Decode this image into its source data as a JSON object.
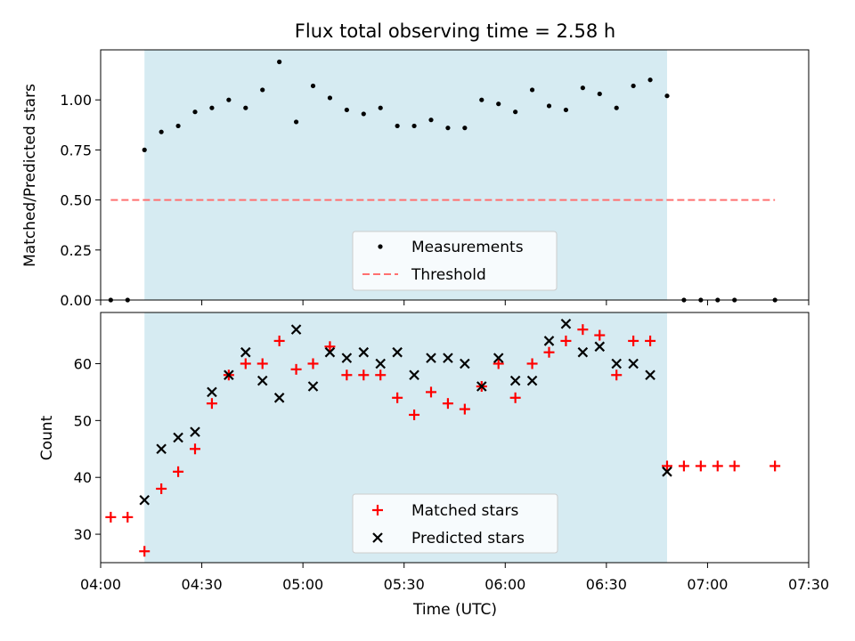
{
  "chart_data": [
    {
      "type": "scatter",
      "title": "Flux total observing time = 2.58 h",
      "ylabel": "Matched/Predicted stars",
      "xlabel": "",
      "xlim": [
        "04:00",
        "07:30"
      ],
      "ylim": [
        0,
        1.25
      ],
      "yticks": [
        "0.00",
        "0.25",
        "0.50",
        "0.75",
        "1.00"
      ],
      "shaded_interval": [
        "04:13",
        "06:48"
      ],
      "shade_color": "#add8e6",
      "legend_position": "lower center",
      "series": [
        {
          "name": "Measurements",
          "marker": "dot",
          "color": "#000000",
          "points": [
            [
              "04:03",
              0.0
            ],
            [
              "04:08",
              0.0
            ],
            [
              "04:13",
              0.75
            ],
            [
              "04:18",
              0.84
            ],
            [
              "04:23",
              0.87
            ],
            [
              "04:28",
              0.94
            ],
            [
              "04:33",
              0.96
            ],
            [
              "04:38",
              1.0
            ],
            [
              "04:43",
              0.96
            ],
            [
              "04:48",
              1.05
            ],
            [
              "04:53",
              1.19
            ],
            [
              "04:58",
              0.89
            ],
            [
              "05:03",
              1.07
            ],
            [
              "05:08",
              1.01
            ],
            [
              "05:13",
              0.95
            ],
            [
              "05:18",
              0.93
            ],
            [
              "05:23",
              0.96
            ],
            [
              "05:28",
              0.87
            ],
            [
              "05:33",
              0.87
            ],
            [
              "05:38",
              0.9
            ],
            [
              "05:43",
              0.86
            ],
            [
              "05:48",
              0.86
            ],
            [
              "05:53",
              1.0
            ],
            [
              "05:58",
              0.98
            ],
            [
              "06:03",
              0.94
            ],
            [
              "06:08",
              1.05
            ],
            [
              "06:13",
              0.97
            ],
            [
              "06:18",
              0.95
            ],
            [
              "06:23",
              1.06
            ],
            [
              "06:28",
              1.03
            ],
            [
              "06:33",
              0.96
            ],
            [
              "06:38",
              1.07
            ],
            [
              "06:43",
              1.1
            ],
            [
              "06:48",
              1.02
            ],
            [
              "06:53",
              0.0
            ],
            [
              "06:58",
              0.0
            ],
            [
              "07:03",
              0.0
            ],
            [
              "07:08",
              0.0
            ],
            [
              "07:20",
              0.0
            ]
          ]
        },
        {
          "name": "Threshold",
          "marker": "dashed-line",
          "color": "#ff7070",
          "points": [
            [
              "04:03",
              0.5
            ],
            [
              "07:20",
              0.5
            ]
          ]
        }
      ]
    },
    {
      "type": "scatter",
      "title": "",
      "ylabel": "Count",
      "xlabel": "Time (UTC)",
      "xlim": [
        "04:00",
        "07:30"
      ],
      "ylim": [
        25,
        69
      ],
      "yticks": [
        "30",
        "40",
        "50",
        "60"
      ],
      "xticks": [
        "04:00",
        "04:30",
        "05:00",
        "05:30",
        "06:00",
        "06:30",
        "07:00",
        "07:30"
      ],
      "shaded_interval": [
        "04:13",
        "06:48"
      ],
      "shade_color": "#add8e6",
      "legend_position": "lower center",
      "series": [
        {
          "name": "Matched stars",
          "marker": "plus",
          "color": "#ff0000",
          "points": [
            [
              "04:03",
              33
            ],
            [
              "04:08",
              33
            ],
            [
              "04:13",
              27
            ],
            [
              "04:18",
              38
            ],
            [
              "04:23",
              41
            ],
            [
              "04:28",
              45
            ],
            [
              "04:33",
              53
            ],
            [
              "04:38",
              58
            ],
            [
              "04:43",
              60
            ],
            [
              "04:48",
              60
            ],
            [
              "04:53",
              64
            ],
            [
              "04:58",
              59
            ],
            [
              "05:03",
              60
            ],
            [
              "05:08",
              63
            ],
            [
              "05:13",
              58
            ],
            [
              "05:18",
              58
            ],
            [
              "05:23",
              58
            ],
            [
              "05:28",
              54
            ],
            [
              "05:33",
              51
            ],
            [
              "05:38",
              55
            ],
            [
              "05:43",
              53
            ],
            [
              "05:48",
              52
            ],
            [
              "05:53",
              56
            ],
            [
              "05:58",
              60
            ],
            [
              "06:03",
              54
            ],
            [
              "06:08",
              60
            ],
            [
              "06:13",
              62
            ],
            [
              "06:18",
              64
            ],
            [
              "06:23",
              66
            ],
            [
              "06:28",
              65
            ],
            [
              "06:33",
              58
            ],
            [
              "06:38",
              64
            ],
            [
              "06:43",
              64
            ],
            [
              "06:48",
              42
            ],
            [
              "06:53",
              42
            ],
            [
              "06:58",
              42
            ],
            [
              "07:03",
              42
            ],
            [
              "07:08",
              42
            ],
            [
              "07:20",
              42
            ]
          ]
        },
        {
          "name": "Predicted stars",
          "marker": "x",
          "color": "#000000",
          "points": [
            [
              "04:13",
              36
            ],
            [
              "04:18",
              45
            ],
            [
              "04:23",
              47
            ],
            [
              "04:28",
              48
            ],
            [
              "04:33",
              55
            ],
            [
              "04:38",
              58
            ],
            [
              "04:43",
              62
            ],
            [
              "04:48",
              57
            ],
            [
              "04:53",
              54
            ],
            [
              "04:58",
              66
            ],
            [
              "05:03",
              56
            ],
            [
              "05:08",
              62
            ],
            [
              "05:13",
              61
            ],
            [
              "05:18",
              62
            ],
            [
              "05:23",
              60
            ],
            [
              "05:28",
              62
            ],
            [
              "05:33",
              58
            ],
            [
              "05:38",
              61
            ],
            [
              "05:43",
              61
            ],
            [
              "05:48",
              60
            ],
            [
              "05:53",
              56
            ],
            [
              "05:58",
              61
            ],
            [
              "06:03",
              57
            ],
            [
              "06:08",
              57
            ],
            [
              "06:13",
              64
            ],
            [
              "06:18",
              67
            ],
            [
              "06:23",
              62
            ],
            [
              "06:28",
              63
            ],
            [
              "06:33",
              60
            ],
            [
              "06:38",
              60
            ],
            [
              "06:43",
              58
            ],
            [
              "06:48",
              41
            ]
          ]
        }
      ]
    }
  ]
}
